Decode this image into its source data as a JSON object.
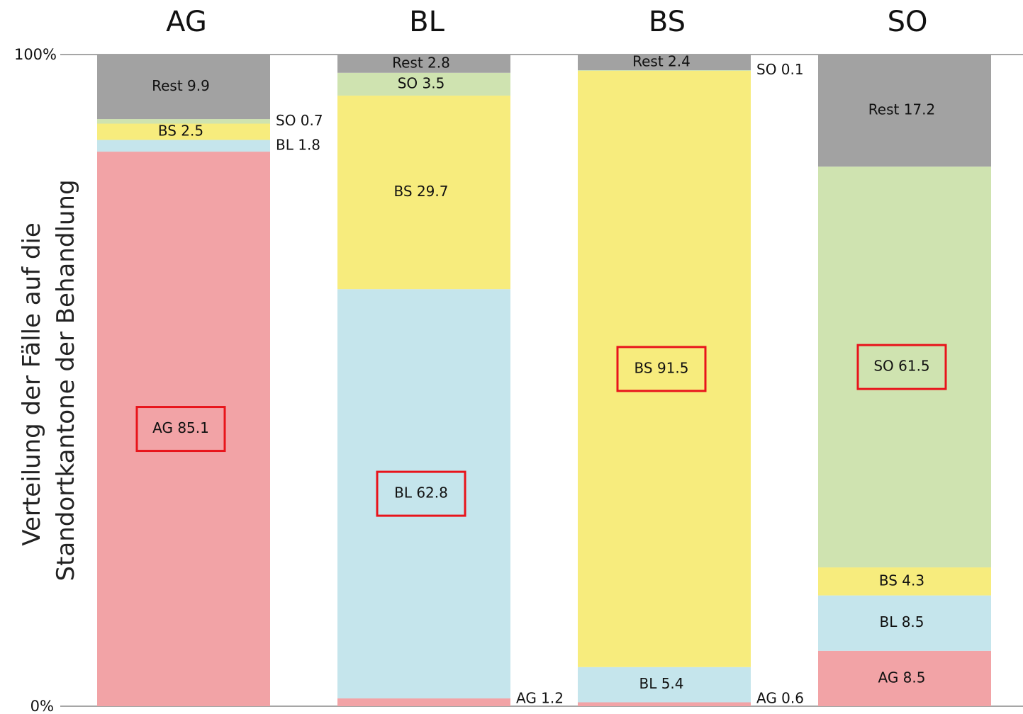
{
  "chart_data": {
    "type": "bar",
    "stacked": true,
    "categories": [
      "AG",
      "BL",
      "BS",
      "SO"
    ],
    "ylabel": [
      "Verteilung der Fälle auf die",
      "Standortkantone der Behandlung"
    ],
    "y_ticks": [
      "0%",
      "100%"
    ],
    "ylim": [
      0,
      100
    ],
    "segment_order": [
      "AG",
      "BL",
      "BS",
      "SO",
      "Rest"
    ],
    "colors": {
      "AG": "#f2a3a6",
      "BL": "#c5e5ec",
      "BS": "#f7ec7d",
      "SO": "#cfe3b0",
      "Rest": "#a2a2a2"
    },
    "bars": [
      {
        "category": "AG",
        "highlight": "AG",
        "segments": [
          {
            "name": "AG",
            "value": 85.1,
            "label": "AG 85.1"
          },
          {
            "name": "BL",
            "value": 1.8,
            "label": "BL 1.8"
          },
          {
            "name": "BS",
            "value": 2.5,
            "label": "BS 2.5"
          },
          {
            "name": "SO",
            "value": 0.7,
            "label": "SO 0.7"
          },
          {
            "name": "Rest",
            "value": 9.9,
            "label": "Rest 9.9"
          }
        ]
      },
      {
        "category": "BL",
        "highlight": "BL",
        "segments": [
          {
            "name": "AG",
            "value": 1.2,
            "label": "AG 1.2"
          },
          {
            "name": "BL",
            "value": 62.8,
            "label": "BL 62.8"
          },
          {
            "name": "BS",
            "value": 29.7,
            "label": "BS 29.7"
          },
          {
            "name": "SO",
            "value": 3.5,
            "label": "SO 3.5"
          },
          {
            "name": "Rest",
            "value": 2.8,
            "label": "Rest 2.8"
          }
        ]
      },
      {
        "category": "BS",
        "highlight": "BS",
        "segments": [
          {
            "name": "AG",
            "value": 0.6,
            "label": "AG 0.6"
          },
          {
            "name": "BL",
            "value": 5.4,
            "label": "BL 5.4"
          },
          {
            "name": "BS",
            "value": 91.5,
            "label": "BS 91.5"
          },
          {
            "name": "SO",
            "value": 0.1,
            "label": "SO 0.1"
          },
          {
            "name": "Rest",
            "value": 2.4,
            "label": "Rest 2.4"
          }
        ]
      },
      {
        "category": "SO",
        "highlight": "SO",
        "segments": [
          {
            "name": "AG",
            "value": 8.5,
            "label": "AG 8.5"
          },
          {
            "name": "BL",
            "value": 8.5,
            "label": "BL 8.5"
          },
          {
            "name": "BS",
            "value": 4.3,
            "label": "BS 4.3"
          },
          {
            "name": "SO",
            "value": 61.5,
            "label": "SO 61.5"
          },
          {
            "name": "Rest",
            "value": 17.2,
            "label": "Rest 17.2"
          }
        ]
      }
    ]
  }
}
